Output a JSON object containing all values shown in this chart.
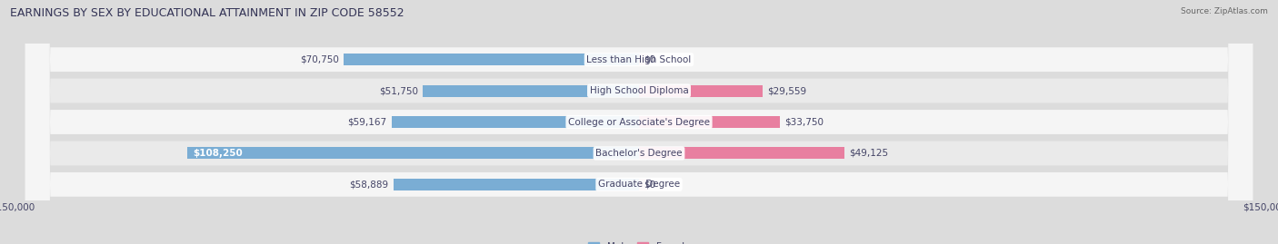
{
  "title": "EARNINGS BY SEX BY EDUCATIONAL ATTAINMENT IN ZIP CODE 58552",
  "source": "Source: ZipAtlas.com",
  "categories": [
    "Less than High School",
    "High School Diploma",
    "College or Associate's Degree",
    "Bachelor's Degree",
    "Graduate Degree"
  ],
  "male_values": [
    70750,
    51750,
    59167,
    108250,
    58889
  ],
  "female_values": [
    0,
    29559,
    33750,
    49125,
    0
  ],
  "male_color": "#7aadd4",
  "female_color": "#e87fa0",
  "xlim": 150000,
  "title_fontsize": 9,
  "label_fontsize": 7.5,
  "tick_fontsize": 7.5,
  "text_color": "#444466",
  "background_color": "#dcdcdc",
  "row_bg_color": "#f2f2f2",
  "row_highlight_colors": [
    "#f7f7f7",
    "#ebebeb"
  ]
}
